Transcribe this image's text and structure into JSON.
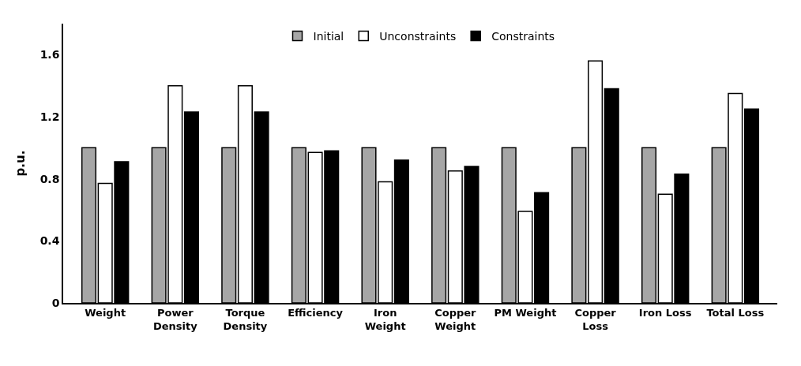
{
  "chart_data": {
    "type": "bar",
    "ylabel": "p.u.",
    "categories": [
      "Weight",
      "Power\nDensity",
      "Torque\nDensity",
      "Efficiency",
      "Iron\nWeight",
      "Copper\nWeight",
      "PM Weight",
      "Copper\nLoss",
      "Iron Loss",
      "Total Loss"
    ],
    "series": [
      {
        "name": "Initial",
        "color": "#a6a6a6",
        "values": [
          1,
          1,
          1,
          1,
          1,
          1,
          1,
          1,
          1,
          1
        ]
      },
      {
        "name": "Unconstraints",
        "color": "#ffffff",
        "values": [
          0.77,
          1.4,
          1.4,
          0.97,
          0.78,
          0.85,
          0.59,
          1.56,
          0.7,
          1.35
        ]
      },
      {
        "name": "Constraints",
        "color": "#000000",
        "values": [
          0.91,
          1.23,
          1.23,
          0.98,
          0.92,
          0.88,
          0.71,
          1.38,
          0.83,
          1.25
        ]
      }
    ],
    "ylim": [
      0,
      1.8
    ],
    "yticks": [
      0,
      0.4,
      0.8,
      1.2,
      1.6
    ],
    "legend": "top"
  }
}
